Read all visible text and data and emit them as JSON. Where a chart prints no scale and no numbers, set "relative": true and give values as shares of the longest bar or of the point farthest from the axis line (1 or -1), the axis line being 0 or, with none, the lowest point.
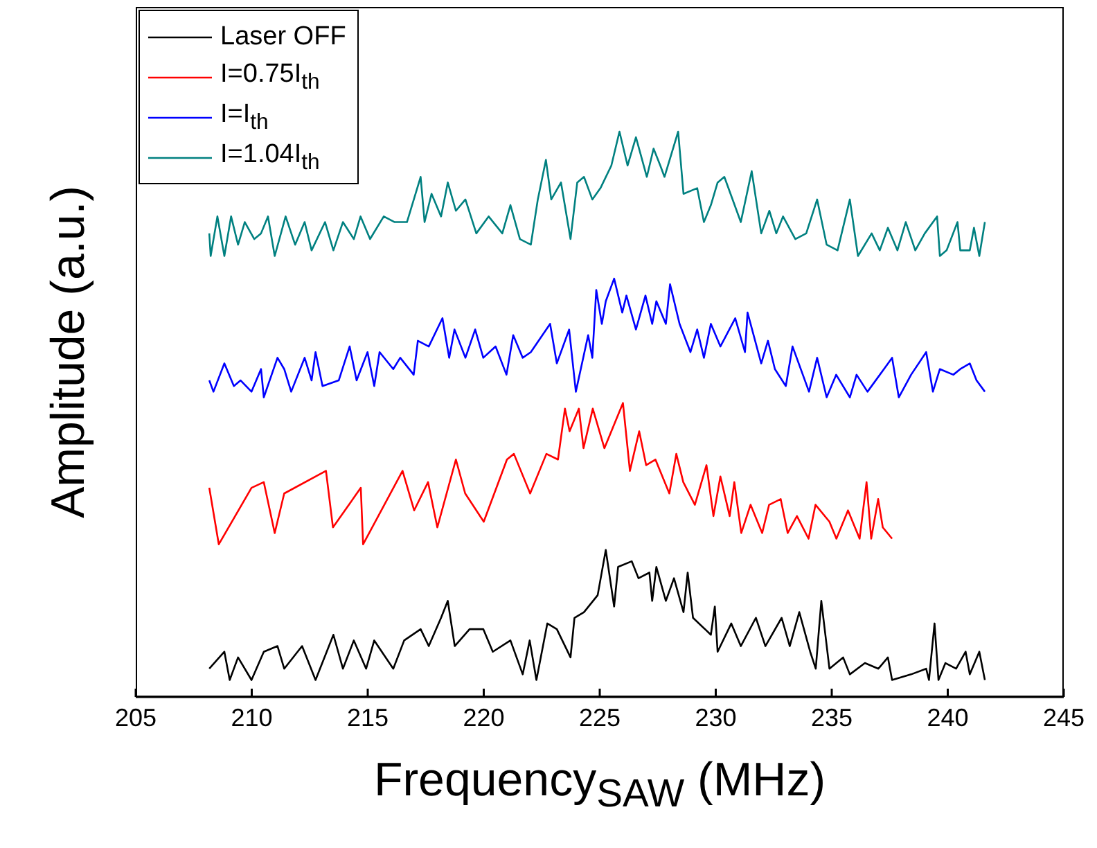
{
  "chart_data": {
    "type": "line",
    "relative": true,
    "xlabel": "Frequency$_{SAW}$ (MHz)",
    "ylabel": "Amplitude (a.u.)",
    "xlim": [
      205,
      245
    ],
    "xticks": [
      205,
      210,
      215,
      220,
      225,
      230,
      235,
      240,
      245
    ],
    "legend": "top left",
    "grid": false,
    "marker": "none",
    "series": [
      {
        "name": "Laser OFF",
        "color": "#000000",
        "x": [
          208.17,
          208.82,
          209.05,
          209.41,
          209.99,
          210.52,
          211.11,
          211.4,
          212.17,
          212.75,
          213.52,
          213.93,
          214.4,
          214.93,
          215.28,
          216.1,
          216.57,
          217.28,
          217.63,
          218.16,
          218.45,
          218.75,
          219.39,
          219.98,
          220.39,
          221.15,
          221.68,
          221.98,
          222.27,
          222.74,
          223.15,
          223.74,
          223.91,
          224.32,
          224.91,
          225.26,
          225.62,
          225.79,
          226.38,
          226.67,
          227.14,
          227.26,
          227.44,
          227.85,
          228.2,
          228.61,
          228.79,
          229.02,
          229.79,
          229.96,
          230.08,
          230.67,
          231.08,
          231.73,
          232.14,
          232.84,
          233.19,
          233.6,
          234.07,
          234.31,
          234.55,
          234.9,
          235.49,
          235.78,
          236.43,
          237.01,
          237.42,
          237.6,
          238.42,
          239.07,
          239.19,
          239.43,
          239.6,
          239.9,
          240.36,
          240.77,
          240.95,
          241.36,
          241.6
        ],
        "values": [
          0.05,
          0.08,
          0.03,
          0.07,
          0.03,
          0.08,
          0.09,
          0.05,
          0.09,
          0.03,
          0.11,
          0.05,
          0.1,
          0.05,
          0.1,
          0.05,
          0.1,
          0.12,
          0.09,
          0.14,
          0.17,
          0.09,
          0.12,
          0.12,
          0.08,
          0.1,
          0.04,
          0.1,
          0.03,
          0.13,
          0.12,
          0.07,
          0.14,
          0.15,
          0.18,
          0.26,
          0.16,
          0.23,
          0.24,
          0.21,
          0.22,
          0.17,
          0.23,
          0.17,
          0.21,
          0.15,
          0.22,
          0.14,
          0.11,
          0.16,
          0.08,
          0.13,
          0.09,
          0.14,
          0.09,
          0.14,
          0.09,
          0.15,
          0.08,
          0.05,
          0.17,
          0.05,
          0.07,
          0.04,
          0.06,
          0.05,
          0.07,
          0.03,
          0.04,
          0.05,
          0.03,
          0.13,
          0.03,
          0.06,
          0.05,
          0.08,
          0.04,
          0.08,
          0.03
        ]
      },
      {
        "name": "I=0.75I$_{th}$",
        "color": "#ff0000",
        "x": [
          208.17,
          208.58,
          209.99,
          210.52,
          210.99,
          211.4,
          213.2,
          213.5,
          214.7,
          214.8,
          216.5,
          217.0,
          217.6,
          218.0,
          218.8,
          219.2,
          220.0,
          221.0,
          221.3,
          222.0,
          222.7,
          223.2,
          223.5,
          223.7,
          224.1,
          224.3,
          224.7,
          225.2,
          226.0,
          226.3,
          226.7,
          227.0,
          227.4,
          228.0,
          228.3,
          228.6,
          229.1,
          229.6,
          229.9,
          230.2,
          230.6,
          230.8,
          231.1,
          231.5,
          232.0,
          232.3,
          232.8,
          233.1,
          233.5,
          234.0,
          234.3,
          234.9,
          235.2,
          235.7,
          236.1,
          236.2,
          236.5,
          236.7,
          237.0,
          237.2,
          237.6
        ],
        "values": [
          0.37,
          0.27,
          0.37,
          0.38,
          0.29,
          0.36,
          0.4,
          0.3,
          0.37,
          0.27,
          0.4,
          0.33,
          0.38,
          0.3,
          0.42,
          0.36,
          0.31,
          0.42,
          0.43,
          0.36,
          0.43,
          0.42,
          0.51,
          0.47,
          0.51,
          0.44,
          0.51,
          0.44,
          0.52,
          0.4,
          0.47,
          0.41,
          0.42,
          0.36,
          0.43,
          0.38,
          0.34,
          0.41,
          0.32,
          0.39,
          0.32,
          0.38,
          0.29,
          0.34,
          0.29,
          0.34,
          0.35,
          0.29,
          0.32,
          0.28,
          0.34,
          0.31,
          0.28,
          0.33,
          0.29,
          0.28,
          0.38,
          0.28,
          0.35,
          0.3,
          0.28
        ]
      },
      {
        "name": "I=I$_{th}$",
        "color": "#0000ff",
        "x": [
          208.17,
          208.35,
          208.82,
          209.23,
          209.52,
          209.99,
          210.4,
          210.52,
          211.11,
          211.4,
          211.7,
          212.28,
          212.58,
          212.75,
          213.05,
          213.75,
          214.22,
          214.52,
          214.99,
          215.28,
          215.51,
          216.1,
          216.4,
          216.98,
          217.16,
          217.63,
          218.22,
          218.51,
          218.74,
          219.21,
          219.63,
          219.98,
          220.51,
          220.98,
          221.27,
          221.68,
          222.03,
          222.86,
          223.15,
          223.68,
          223.97,
          224.5,
          224.68,
          224.85,
          225.09,
          225.26,
          225.62,
          225.97,
          226.15,
          226.56,
          226.97,
          227.26,
          227.44,
          227.85,
          228.03,
          228.44,
          228.91,
          229.2,
          229.49,
          229.79,
          230.2,
          230.84,
          231.26,
          231.37,
          231.96,
          232.25,
          232.55,
          233.02,
          233.31,
          234.02,
          234.37,
          234.78,
          235.19,
          235.78,
          236.07,
          236.54,
          237.25,
          237.6,
          237.89,
          238.42,
          239.07,
          239.36,
          239.66,
          240.24,
          240.54,
          240.95,
          241.24,
          241.6
        ],
        "values": [
          0.56,
          0.54,
          0.59,
          0.55,
          0.56,
          0.54,
          0.58,
          0.53,
          0.6,
          0.58,
          0.54,
          0.6,
          0.56,
          0.61,
          0.55,
          0.56,
          0.62,
          0.56,
          0.61,
          0.55,
          0.61,
          0.58,
          0.6,
          0.57,
          0.63,
          0.62,
          0.67,
          0.6,
          0.65,
          0.6,
          0.65,
          0.6,
          0.62,
          0.57,
          0.64,
          0.6,
          0.61,
          0.66,
          0.59,
          0.65,
          0.54,
          0.64,
          0.6,
          0.72,
          0.66,
          0.7,
          0.74,
          0.68,
          0.71,
          0.65,
          0.71,
          0.66,
          0.7,
          0.66,
          0.73,
          0.66,
          0.61,
          0.65,
          0.6,
          0.66,
          0.62,
          0.67,
          0.61,
          0.68,
          0.59,
          0.63,
          0.58,
          0.55,
          0.62,
          0.54,
          0.6,
          0.53,
          0.57,
          0.53,
          0.57,
          0.54,
          0.58,
          0.6,
          0.53,
          0.57,
          0.61,
          0.54,
          0.58,
          0.57,
          0.58,
          0.59,
          0.56,
          0.54
        ]
      },
      {
        "name": "I=1.04I$_{th}$",
        "color": "#008080",
        "x": [
          208.17,
          208.23,
          208.52,
          208.82,
          209.11,
          209.41,
          209.7,
          210.11,
          210.4,
          210.7,
          210.99,
          211.46,
          211.87,
          212.28,
          212.58,
          213.16,
          213.52,
          213.93,
          214.4,
          214.69,
          215.1,
          215.69,
          216.16,
          216.69,
          217.28,
          217.45,
          217.75,
          218.16,
          218.45,
          218.8,
          219.21,
          219.68,
          220.21,
          220.8,
          221.15,
          221.56,
          222.03,
          222.33,
          222.68,
          222.91,
          223.33,
          223.74,
          224.03,
          224.32,
          224.68,
          225.03,
          225.5,
          225.85,
          226.2,
          226.56,
          227.03,
          227.32,
          227.61,
          227.79,
          228.38,
          228.61,
          229.2,
          229.49,
          229.79,
          230.08,
          230.37,
          231.08,
          231.55,
          231.96,
          232.31,
          232.61,
          232.9,
          233.43,
          233.9,
          234.37,
          234.78,
          235.25,
          235.78,
          236.13,
          236.72,
          237.07,
          237.42,
          237.83,
          238.19,
          238.6,
          239.01,
          239.54,
          239.66,
          239.95,
          240.42,
          240.54,
          240.95,
          241.13,
          241.36,
          241.6
        ],
        "values": [
          0.82,
          0.78,
          0.85,
          0.78,
          0.85,
          0.8,
          0.84,
          0.81,
          0.82,
          0.85,
          0.78,
          0.85,
          0.8,
          0.84,
          0.79,
          0.84,
          0.79,
          0.84,
          0.81,
          0.85,
          0.81,
          0.85,
          0.84,
          0.84,
          0.92,
          0.84,
          0.89,
          0.85,
          0.91,
          0.86,
          0.88,
          0.82,
          0.85,
          0.82,
          0.87,
          0.81,
          0.8,
          0.88,
          0.95,
          0.88,
          0.91,
          0.81,
          0.91,
          0.92,
          0.88,
          0.9,
          0.94,
          1,
          0.94,
          0.99,
          0.92,
          0.97,
          0.94,
          0.92,
          1,
          0.89,
          0.9,
          0.84,
          0.87,
          0.91,
          0.92,
          0.84,
          0.93,
          0.82,
          0.86,
          0.82,
          0.85,
          0.81,
          0.82,
          0.88,
          0.8,
          0.79,
          0.88,
          0.78,
          0.82,
          0.79,
          0.83,
          0.79,
          0.84,
          0.79,
          0.82,
          0.85,
          0.78,
          0.79,
          0.84,
          0.79,
          0.79,
          0.83,
          0.78,
          0.84
        ]
      }
    ]
  }
}
